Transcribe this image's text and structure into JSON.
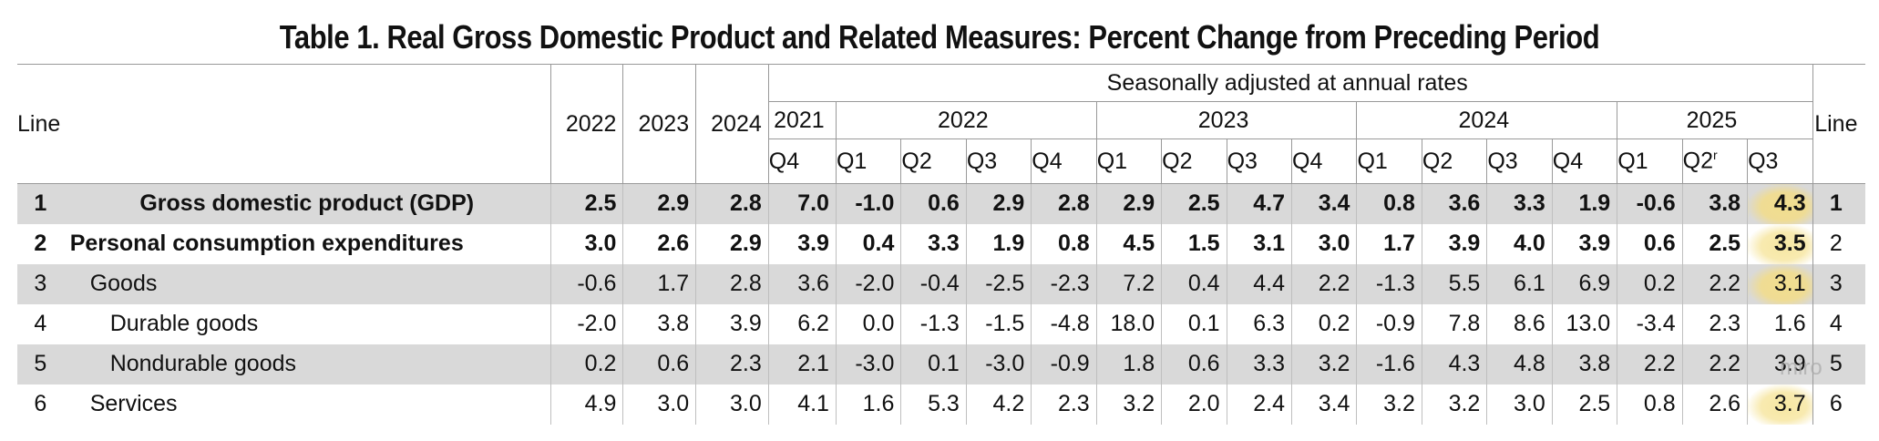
{
  "title": "Table 1. Real Gross Domestic Product and Related Measures: Percent Change from Preceding Period",
  "header": {
    "line_label": "Line",
    "annual_years": [
      "2022",
      "2023",
      "2024"
    ],
    "seasonal_label": "Seasonally adjusted at annual rates",
    "quarter_years": [
      "2021",
      "2022",
      "2023",
      "2024",
      "2025"
    ],
    "quarters": [
      "Q4",
      "Q1",
      "Q2",
      "Q3",
      "Q4",
      "Q1",
      "Q2",
      "Q3",
      "Q4",
      "Q1",
      "Q2",
      "Q3",
      "Q4",
      "Q1",
      "Q2",
      "Q3"
    ],
    "q2_2025_mark": "r"
  },
  "rows": [
    {
      "line": "1",
      "label": "Gross domestic product (GDP)",
      "values": [
        "2.5",
        "2.9",
        "2.8",
        "7.0",
        "-1.0",
        "0.6",
        "2.9",
        "2.8",
        "2.9",
        "2.5",
        "4.7",
        "3.4",
        "0.8",
        "3.6",
        "3.3",
        "1.9",
        "-0.6",
        "3.8",
        "4.3"
      ]
    },
    {
      "line": "2",
      "label": "Personal consumption expenditures",
      "values": [
        "3.0",
        "2.6",
        "2.9",
        "3.9",
        "0.4",
        "3.3",
        "1.9",
        "0.8",
        "4.5",
        "1.5",
        "3.1",
        "3.0",
        "1.7",
        "3.9",
        "4.0",
        "3.9",
        "0.6",
        "2.5",
        "3.5"
      ]
    },
    {
      "line": "3",
      "label": "Goods",
      "values": [
        "-0.6",
        "1.7",
        "2.8",
        "3.6",
        "-2.0",
        "-0.4",
        "-2.5",
        "-2.3",
        "7.2",
        "0.4",
        "4.4",
        "2.2",
        "-1.3",
        "5.5",
        "6.1",
        "6.9",
        "0.2",
        "2.2",
        "3.1"
      ]
    },
    {
      "line": "4",
      "label": "Durable goods",
      "values": [
        "-2.0",
        "3.8",
        "3.9",
        "6.2",
        "0.0",
        "-1.3",
        "-1.5",
        "-4.8",
        "18.0",
        "0.1",
        "6.3",
        "0.2",
        "-0.9",
        "7.8",
        "8.6",
        "13.0",
        "-3.4",
        "2.3",
        "1.6"
      ]
    },
    {
      "line": "5",
      "label": "Nondurable goods",
      "values": [
        "0.2",
        "0.6",
        "2.3",
        "2.1",
        "-3.0",
        "0.1",
        "-3.0",
        "-0.9",
        "1.8",
        "0.6",
        "3.3",
        "3.2",
        "-1.6",
        "4.3",
        "4.8",
        "3.8",
        "2.2",
        "2.2",
        "3.9"
      ]
    },
    {
      "line": "6",
      "label": "Services",
      "values": [
        "4.9",
        "3.0",
        "3.0",
        "4.1",
        "1.6",
        "5.3",
        "4.2",
        "2.3",
        "3.2",
        "2.0",
        "2.4",
        "3.4",
        "3.2",
        "3.2",
        "3.0",
        "2.5",
        "0.8",
        "2.6",
        "3.7"
      ]
    }
  ],
  "watermark": "miro",
  "colors": {
    "row_shade": "#d9d9d9",
    "highlight": "#f6e7a2",
    "rule": "#999999"
  }
}
